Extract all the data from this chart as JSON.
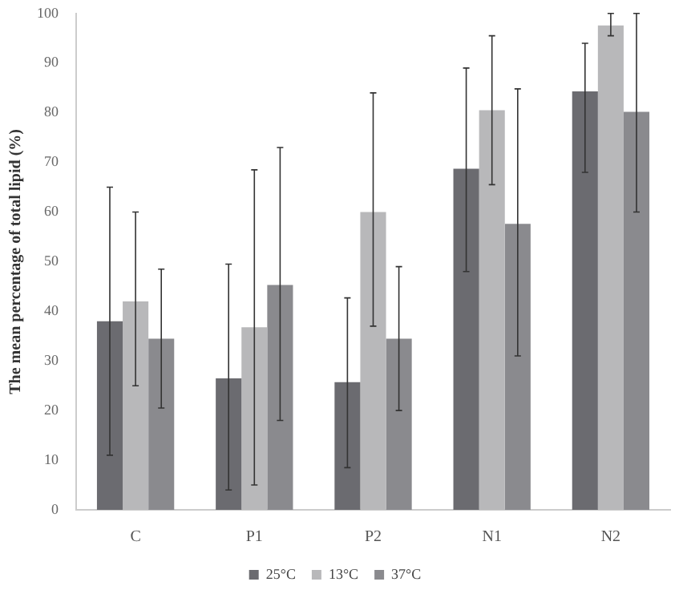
{
  "chart_data": {
    "type": "bar",
    "ylabel": "The mean percentage of total lipid (%)",
    "categories": [
      "C",
      "P1",
      "P2",
      "N1",
      "N2"
    ],
    "series": [
      {
        "name": "25°C",
        "color": "#6b6b70",
        "values": [
          38,
          26.5,
          25.7,
          68.7,
          84.3
        ],
        "errors": [
          [
            11,
            65
          ],
          [
            4,
            49.5
          ],
          [
            8.5,
            42.7
          ],
          [
            48,
            89
          ],
          [
            68,
            94
          ]
        ]
      },
      {
        "name": "13°C",
        "color": "#b8b8ba",
        "values": [
          42,
          36.8,
          60,
          80.5,
          97.6
        ],
        "errors": [
          [
            25,
            60
          ],
          [
            5,
            68.5
          ],
          [
            37,
            84
          ],
          [
            65.5,
            95.5
          ],
          [
            95.5,
            100
          ]
        ]
      },
      {
        "name": "37°C",
        "color": "#8a8a8e",
        "values": [
          34.5,
          45.3,
          34.5,
          57.6,
          80.2
        ],
        "errors": [
          [
            20.5,
            48.5
          ],
          [
            18,
            73
          ],
          [
            20,
            49
          ],
          [
            31,
            84.8
          ],
          [
            60,
            100
          ]
        ]
      }
    ],
    "ylim": [
      0,
      100
    ],
    "yticks": [
      0,
      10,
      20,
      30,
      40,
      50,
      60,
      70,
      80,
      90,
      100
    ],
    "grid": false,
    "legend": "bottom"
  }
}
